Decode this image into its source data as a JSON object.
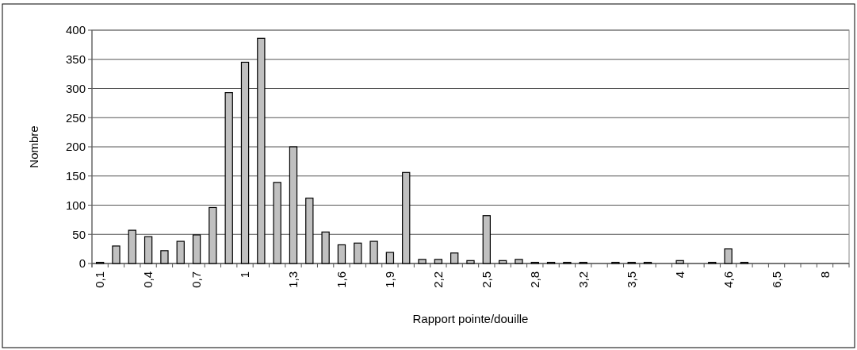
{
  "chart_data": {
    "type": "bar",
    "xlabel": "Rapport pointe/douille",
    "ylabel": "Nombre",
    "categories": [
      "0,1",
      null,
      null,
      "0,4",
      null,
      null,
      "0,7",
      null,
      null,
      "1",
      null,
      null,
      "1,3",
      null,
      null,
      "1,6",
      null,
      null,
      "1,9",
      null,
      null,
      "2,2",
      null,
      null,
      "2,5",
      null,
      null,
      "2,8",
      null,
      null,
      "3,2",
      null,
      null,
      "3,5",
      null,
      null,
      "4",
      null,
      null,
      "4,6",
      null,
      null,
      "6,5",
      null,
      null,
      "8",
      null
    ],
    "values": [
      2,
      30,
      57,
      46,
      22,
      38,
      49,
      96,
      293,
      345,
      386,
      139,
      200,
      112,
      54,
      32,
      35,
      38,
      19,
      156,
      7,
      7,
      18,
      5,
      82,
      5,
      7,
      2,
      2,
      2,
      2,
      0,
      2,
      2,
      2,
      0,
      5,
      0,
      2,
      25,
      2,
      0,
      0,
      0,
      0,
      0,
      0
    ],
    "color": "#c0c0c0",
    "ylim": [
      0,
      400
    ],
    "yticks": [
      0,
      50,
      100,
      150,
      200,
      250,
      300,
      350,
      400
    ],
    "grid": "y"
  }
}
